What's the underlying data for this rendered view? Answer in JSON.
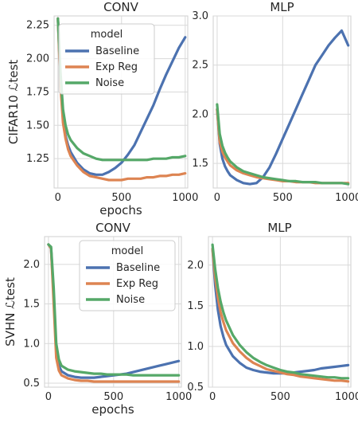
{
  "chart_data": [
    {
      "type": "line",
      "title": "CONV",
      "xlabel": "epochs",
      "ylabel": "CIFAR10 ℒtest",
      "xlim": [
        -30,
        1020
      ],
      "ylim": [
        1.03,
        2.32
      ],
      "xticks": [
        0,
        500,
        1000
      ],
      "yticks": [
        1.25,
        1.5,
        1.75,
        2.0,
        2.25
      ],
      "ytick_labels": [
        "1.25",
        "1.50",
        "1.75",
        "2.00",
        "2.25"
      ],
      "legend": {
        "title": "model",
        "placement": "upper-center"
      },
      "series": [
        {
          "name": "Baseline",
          "color": "#4c72b0",
          "x": [
            0,
            20,
            40,
            60,
            80,
            100,
            150,
            200,
            250,
            300,
            350,
            400,
            450,
            500,
            550,
            600,
            650,
            700,
            750,
            800,
            850,
            900,
            950,
            1000
          ],
          "y": [
            2.3,
            1.85,
            1.55,
            1.42,
            1.35,
            1.3,
            1.22,
            1.17,
            1.14,
            1.13,
            1.13,
            1.15,
            1.18,
            1.22,
            1.28,
            1.35,
            1.45,
            1.55,
            1.65,
            1.77,
            1.88,
            1.98,
            2.08,
            2.16
          ]
        },
        {
          "name": "Exp Reg",
          "color": "#dd8452",
          "x": [
            0,
            20,
            40,
            60,
            80,
            100,
            150,
            200,
            250,
            300,
            350,
            400,
            450,
            500,
            550,
            600,
            650,
            700,
            750,
            800,
            850,
            900,
            950,
            1000
          ],
          "y": [
            2.3,
            1.8,
            1.52,
            1.4,
            1.32,
            1.27,
            1.2,
            1.15,
            1.12,
            1.11,
            1.1,
            1.09,
            1.09,
            1.09,
            1.1,
            1.1,
            1.1,
            1.11,
            1.11,
            1.12,
            1.12,
            1.13,
            1.13,
            1.14
          ]
        },
        {
          "name": "Noise",
          "color": "#55a868",
          "x": [
            0,
            20,
            40,
            60,
            80,
            100,
            150,
            200,
            250,
            300,
            350,
            400,
            450,
            500,
            550,
            600,
            650,
            700,
            750,
            800,
            850,
            900,
            950,
            1000
          ],
          "y": [
            2.3,
            1.9,
            1.62,
            1.5,
            1.43,
            1.39,
            1.33,
            1.29,
            1.27,
            1.25,
            1.24,
            1.24,
            1.24,
            1.24,
            1.24,
            1.24,
            1.24,
            1.24,
            1.25,
            1.25,
            1.25,
            1.26,
            1.26,
            1.27
          ]
        }
      ]
    },
    {
      "type": "line",
      "title": "MLP",
      "xlabel": "",
      "ylabel": "",
      "xlim": [
        -30,
        1020
      ],
      "ylim": [
        1.25,
        3.0
      ],
      "xticks": [
        0,
        500,
        1000
      ],
      "yticks": [
        1.5,
        2.0,
        2.5,
        3.0
      ],
      "ytick_labels": [
        "1.5",
        "2.0",
        "2.5",
        "3.0"
      ],
      "series": [
        {
          "name": "Baseline",
          "color": "#4c72b0",
          "x": [
            0,
            20,
            40,
            60,
            80,
            100,
            150,
            200,
            250,
            300,
            350,
            400,
            450,
            500,
            550,
            600,
            650,
            700,
            750,
            800,
            850,
            900,
            950,
            1000
          ],
          "y": [
            2.05,
            1.7,
            1.55,
            1.47,
            1.42,
            1.38,
            1.33,
            1.3,
            1.29,
            1.3,
            1.36,
            1.46,
            1.6,
            1.75,
            1.9,
            2.05,
            2.2,
            2.35,
            2.5,
            2.6,
            2.7,
            2.78,
            2.85,
            2.7
          ]
        },
        {
          "name": "Exp Reg",
          "color": "#dd8452",
          "x": [
            0,
            20,
            40,
            60,
            80,
            100,
            150,
            200,
            250,
            300,
            350,
            400,
            450,
            500,
            550,
            600,
            650,
            700,
            750,
            800,
            850,
            900,
            950,
            1000
          ],
          "y": [
            2.05,
            1.72,
            1.62,
            1.56,
            1.52,
            1.48,
            1.43,
            1.4,
            1.38,
            1.36,
            1.35,
            1.34,
            1.33,
            1.32,
            1.32,
            1.31,
            1.31,
            1.31,
            1.3,
            1.3,
            1.3,
            1.3,
            1.3,
            1.3
          ]
        },
        {
          "name": "Noise",
          "color": "#55a868",
          "x": [
            0,
            20,
            40,
            60,
            80,
            100,
            150,
            200,
            250,
            300,
            350,
            400,
            450,
            500,
            550,
            600,
            650,
            700,
            750,
            800,
            850,
            900,
            950,
            1000
          ],
          "y": [
            2.1,
            1.8,
            1.68,
            1.61,
            1.56,
            1.52,
            1.46,
            1.42,
            1.4,
            1.38,
            1.36,
            1.35,
            1.34,
            1.33,
            1.32,
            1.32,
            1.31,
            1.31,
            1.31,
            1.3,
            1.3,
            1.3,
            1.3,
            1.29
          ]
        }
      ]
    },
    {
      "type": "line",
      "title": "CONV",
      "xlabel": "epochs",
      "ylabel": "SVHN ℒtest",
      "xlim": [
        -30,
        1020
      ],
      "ylim": [
        0.45,
        2.35
      ],
      "xticks": [
        0,
        500,
        1000
      ],
      "yticks": [
        0.5,
        1.0,
        1.5,
        2.0
      ],
      "ytick_labels": [
        "0.5",
        "1.0",
        "1.5",
        "2.0"
      ],
      "legend": {
        "title": "model",
        "placement": "upper-right"
      },
      "series": [
        {
          "name": "Baseline",
          "color": "#4c72b0",
          "x": [
            0,
            20,
            40,
            60,
            80,
            100,
            150,
            200,
            250,
            300,
            350,
            400,
            450,
            500,
            550,
            600,
            650,
            700,
            750,
            800,
            850,
            900,
            950,
            1000
          ],
          "y": [
            2.25,
            2.2,
            1.6,
            0.9,
            0.72,
            0.65,
            0.6,
            0.58,
            0.57,
            0.57,
            0.57,
            0.58,
            0.59,
            0.6,
            0.61,
            0.62,
            0.64,
            0.66,
            0.68,
            0.7,
            0.72,
            0.74,
            0.76,
            0.78
          ]
        },
        {
          "name": "Exp Reg",
          "color": "#dd8452",
          "x": [
            0,
            20,
            40,
            60,
            80,
            100,
            150,
            200,
            250,
            300,
            350,
            400,
            450,
            500,
            550,
            600,
            650,
            700,
            750,
            800,
            850,
            900,
            950,
            1000
          ],
          "y": [
            2.25,
            2.2,
            1.5,
            0.82,
            0.66,
            0.6,
            0.56,
            0.54,
            0.53,
            0.53,
            0.52,
            0.52,
            0.52,
            0.52,
            0.52,
            0.52,
            0.52,
            0.52,
            0.52,
            0.52,
            0.52,
            0.52,
            0.52,
            0.52
          ]
        },
        {
          "name": "Noise",
          "color": "#55a868",
          "x": [
            0,
            20,
            40,
            60,
            80,
            100,
            150,
            200,
            250,
            300,
            350,
            400,
            450,
            500,
            550,
            600,
            650,
            700,
            750,
            800,
            850,
            900,
            950,
            1000
          ],
          "y": [
            2.25,
            2.22,
            1.7,
            1.0,
            0.8,
            0.72,
            0.67,
            0.65,
            0.64,
            0.63,
            0.62,
            0.62,
            0.61,
            0.61,
            0.61,
            0.61,
            0.6,
            0.6,
            0.6,
            0.6,
            0.6,
            0.6,
            0.6,
            0.6
          ]
        }
      ]
    },
    {
      "type": "line",
      "title": "MLP",
      "xlabel": "",
      "ylabel": "",
      "xlim": [
        -30,
        1020
      ],
      "ylim": [
        0.5,
        2.35
      ],
      "xticks": [
        0,
        500,
        1000
      ],
      "yticks": [
        0.5,
        1.0,
        1.5,
        2.0
      ],
      "ytick_labels": [
        "0.5",
        "1.0",
        "1.5",
        "2.0"
      ],
      "series": [
        {
          "name": "Baseline",
          "color": "#4c72b0",
          "x": [
            0,
            20,
            40,
            60,
            80,
            100,
            150,
            200,
            250,
            300,
            350,
            400,
            450,
            500,
            550,
            600,
            650,
            700,
            750,
            800,
            850,
            900,
            950,
            1000
          ],
          "y": [
            2.2,
            1.75,
            1.45,
            1.25,
            1.12,
            1.02,
            0.88,
            0.8,
            0.74,
            0.71,
            0.69,
            0.68,
            0.67,
            0.67,
            0.67,
            0.68,
            0.69,
            0.7,
            0.71,
            0.73,
            0.74,
            0.75,
            0.76,
            0.77
          ]
        },
        {
          "name": "Exp Reg",
          "color": "#dd8452",
          "x": [
            0,
            20,
            40,
            60,
            80,
            100,
            150,
            200,
            250,
            300,
            350,
            400,
            450,
            500,
            550,
            600,
            650,
            700,
            750,
            800,
            850,
            900,
            950,
            1000
          ],
          "y": [
            2.2,
            1.85,
            1.6,
            1.42,
            1.3,
            1.2,
            1.04,
            0.94,
            0.86,
            0.8,
            0.76,
            0.72,
            0.7,
            0.68,
            0.66,
            0.65,
            0.63,
            0.62,
            0.61,
            0.6,
            0.59,
            0.58,
            0.58,
            0.57
          ]
        },
        {
          "name": "Noise",
          "color": "#55a868",
          "x": [
            0,
            20,
            40,
            60,
            80,
            100,
            150,
            200,
            250,
            300,
            350,
            400,
            450,
            500,
            550,
            600,
            650,
            700,
            750,
            800,
            850,
            900,
            950,
            1000
          ],
          "y": [
            2.25,
            1.95,
            1.72,
            1.55,
            1.42,
            1.32,
            1.14,
            1.02,
            0.93,
            0.86,
            0.81,
            0.77,
            0.74,
            0.71,
            0.69,
            0.68,
            0.66,
            0.65,
            0.64,
            0.63,
            0.62,
            0.62,
            0.61,
            0.61
          ]
        }
      ]
    }
  ]
}
